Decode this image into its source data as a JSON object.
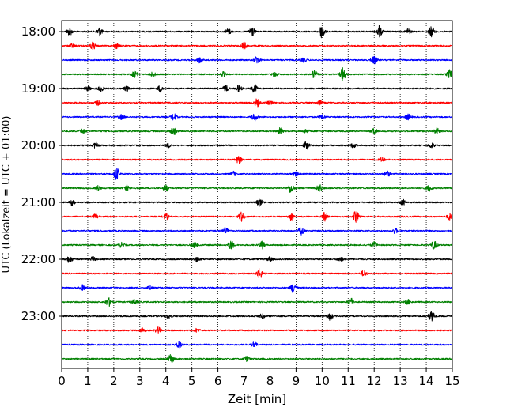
{
  "chart_data": {
    "type": "line",
    "title": "",
    "xlabel": "Zeit  [min]",
    "ylabel": "UTC (Lokalzeit = UTC + 01:00)",
    "xlim": [
      0,
      15
    ],
    "x_ticks": [
      0,
      1,
      2,
      3,
      4,
      5,
      6,
      7,
      8,
      9,
      10,
      11,
      12,
      13,
      14,
      15
    ],
    "x_grid": "vertical dotted at each minute",
    "y_tick_labels": [
      "18:00",
      "19:00",
      "20:00",
      "21:00",
      "22:00",
      "23:00"
    ],
    "colors": [
      "#000000",
      "#ff0000",
      "#0000ff",
      "#008000"
    ],
    "traces": [
      {
        "start": "18:00",
        "color": "#000000",
        "events": [
          [
            0.3,
            0.5
          ],
          [
            1.45,
            0.55
          ],
          [
            6.4,
            0.4
          ],
          [
            7.3,
            0.7
          ],
          [
            10.0,
            0.9
          ],
          [
            12.2,
            0.8
          ],
          [
            13.3,
            0.4
          ],
          [
            14.2,
            0.7
          ]
        ]
      },
      {
        "start": "18:15",
        "color": "#ff0000",
        "events": [
          [
            0.4,
            0.25
          ],
          [
            1.2,
            0.45
          ],
          [
            2.1,
            0.35
          ],
          [
            7.0,
            0.45
          ]
        ]
      },
      {
        "start": "18:30",
        "color": "#0000ff",
        "events": [
          [
            5.3,
            0.35
          ],
          [
            7.5,
            0.5
          ],
          [
            9.3,
            0.25
          ],
          [
            12.0,
            0.6
          ]
        ]
      },
      {
        "start": "18:45",
        "color": "#008000",
        "events": [
          [
            2.8,
            0.4
          ],
          [
            3.5,
            0.3
          ],
          [
            6.2,
            0.3
          ],
          [
            8.2,
            0.3
          ],
          [
            9.7,
            0.5
          ],
          [
            10.8,
            0.9
          ],
          [
            14.9,
            0.6
          ]
        ]
      },
      {
        "start": "19:00",
        "color": "#000000",
        "events": [
          [
            1.0,
            0.3
          ],
          [
            1.5,
            0.35
          ],
          [
            2.5,
            0.3
          ],
          [
            3.8,
            0.5
          ],
          [
            6.3,
            0.4
          ],
          [
            6.8,
            0.45
          ],
          [
            7.4,
            0.55
          ]
        ]
      },
      {
        "start": "19:15",
        "color": "#ff0000",
        "events": [
          [
            1.4,
            0.3
          ],
          [
            7.5,
            0.5
          ],
          [
            8.0,
            0.3
          ],
          [
            9.9,
            0.3
          ]
        ]
      },
      {
        "start": "19:30",
        "color": "#0000ff",
        "events": [
          [
            2.3,
            0.3
          ],
          [
            4.3,
            0.45
          ],
          [
            7.4,
            0.5
          ],
          [
            10.0,
            0.3
          ],
          [
            13.3,
            0.35
          ]
        ]
      },
      {
        "start": "19:45",
        "color": "#008000",
        "events": [
          [
            0.8,
            0.3
          ],
          [
            4.3,
            0.5
          ],
          [
            8.4,
            0.45
          ],
          [
            9.4,
            0.3
          ],
          [
            12.0,
            0.5
          ],
          [
            14.4,
            0.4
          ]
        ]
      },
      {
        "start": "20:00",
        "color": "#000000",
        "events": [
          [
            1.3,
            0.35
          ],
          [
            4.1,
            0.25
          ],
          [
            9.4,
            0.5
          ],
          [
            11.2,
            0.3
          ],
          [
            14.2,
            0.35
          ]
        ]
      },
      {
        "start": "20:15",
        "color": "#ff0000",
        "events": [
          [
            6.8,
            0.5
          ],
          [
            12.3,
            0.3
          ]
        ]
      },
      {
        "start": "20:30",
        "color": "#0000ff",
        "events": [
          [
            2.1,
            0.85
          ],
          [
            6.6,
            0.3
          ],
          [
            9.0,
            0.3
          ],
          [
            12.5,
            0.4
          ]
        ]
      },
      {
        "start": "20:45",
        "color": "#008000",
        "events": [
          [
            1.4,
            0.3
          ],
          [
            2.5,
            0.35
          ],
          [
            4.0,
            0.4
          ],
          [
            8.8,
            0.6
          ],
          [
            9.9,
            0.5
          ],
          [
            14.1,
            0.4
          ]
        ]
      },
      {
        "start": "21:00",
        "color": "#000000",
        "events": [
          [
            0.4,
            0.35
          ],
          [
            7.6,
            0.5
          ],
          [
            13.1,
            0.35
          ]
        ]
      },
      {
        "start": "21:15",
        "color": "#ff0000",
        "events": [
          [
            1.3,
            0.3
          ],
          [
            4.0,
            0.4
          ],
          [
            6.9,
            0.65
          ],
          [
            8.8,
            0.45
          ],
          [
            10.1,
            0.55
          ],
          [
            11.3,
            0.75
          ],
          [
            14.9,
            0.4
          ]
        ]
      },
      {
        "start": "21:30",
        "color": "#0000ff",
        "events": [
          [
            6.3,
            0.45
          ],
          [
            9.2,
            0.5
          ],
          [
            12.8,
            0.35
          ]
        ]
      },
      {
        "start": "21:45",
        "color": "#008000",
        "events": [
          [
            2.3,
            0.3
          ],
          [
            5.1,
            0.35
          ],
          [
            6.5,
            0.65
          ],
          [
            7.7,
            0.45
          ],
          [
            12.0,
            0.4
          ],
          [
            14.3,
            0.55
          ]
        ]
      },
      {
        "start": "22:00",
        "color": "#000000",
        "events": [
          [
            0.3,
            0.45
          ],
          [
            1.2,
            0.3
          ],
          [
            5.2,
            0.3
          ],
          [
            8.0,
            0.3
          ],
          [
            10.7,
            0.3
          ]
        ]
      },
      {
        "start": "22:15",
        "color": "#ff0000",
        "events": [
          [
            7.6,
            0.7
          ],
          [
            11.6,
            0.4
          ]
        ]
      },
      {
        "start": "22:30",
        "color": "#0000ff",
        "events": [
          [
            0.8,
            0.35
          ],
          [
            3.4,
            0.3
          ],
          [
            8.9,
            0.7
          ]
        ]
      },
      {
        "start": "22:45",
        "color": "#008000",
        "events": [
          [
            1.8,
            0.55
          ],
          [
            2.8,
            0.3
          ],
          [
            11.1,
            0.5
          ],
          [
            13.3,
            0.3
          ]
        ]
      },
      {
        "start": "23:00",
        "color": "#000000",
        "events": [
          [
            4.1,
            0.3
          ],
          [
            7.7,
            0.3
          ],
          [
            10.3,
            0.5
          ],
          [
            14.2,
            0.85
          ]
        ]
      },
      {
        "start": "23:15",
        "color": "#ff0000",
        "events": [
          [
            3.1,
            0.3
          ],
          [
            3.7,
            0.45
          ],
          [
            5.2,
            0.25
          ]
        ]
      },
      {
        "start": "23:30",
        "color": "#0000ff",
        "events": [
          [
            4.5,
            0.4
          ],
          [
            7.4,
            0.3
          ]
        ]
      },
      {
        "start": "23:45",
        "color": "#008000",
        "events": [
          [
            4.2,
            0.6
          ],
          [
            7.1,
            0.3
          ]
        ]
      }
    ]
  }
}
